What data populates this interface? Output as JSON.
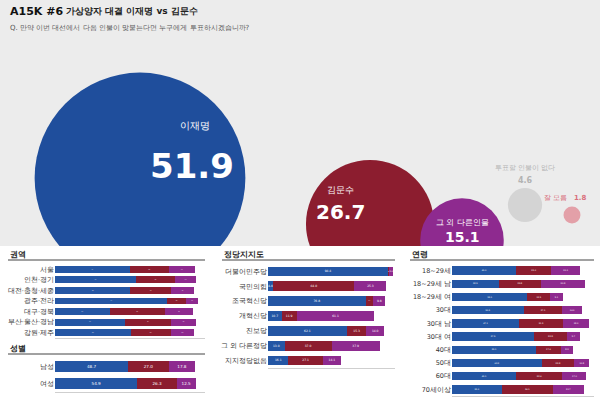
{
  "header": {
    "code": "A15K #6",
    "title": "가상양자 대결 이재명 vs 김문수",
    "question": "Q. 만약 이번 대선에서 다음 인물이 맞붙는다면 누구에게 투표하시겠습니까?"
  },
  "chart_data": [
    {
      "type": "bubble",
      "categories": [
        "이재명",
        "김문수",
        "그 외 다른인물",
        "투표할 인물이 없다",
        "잘 모름"
      ],
      "values": [
        51.9,
        26.7,
        15.1,
        4.6,
        1.8
      ],
      "colors": [
        "#1f4e9c",
        "#8c1d2f",
        "#8e2a8f",
        "#d4d4d4",
        "#e3a0a8"
      ],
      "data_labels": true
    },
    {
      "type": "bar",
      "title": "권역",
      "orientation": "horizontal",
      "stacked": true,
      "data_labels": true,
      "tick_labels": "y",
      "xlim": [
        0,
        100
      ],
      "categories": [
        "서울",
        "인천·경기",
        "대전·충청·세종",
        "광주·전라",
        "대구·경북",
        "부산·울산·경남",
        "강원·제주"
      ],
      "series": [
        {
          "color": "#2456a4",
          "values": [
            49.7,
            54.0,
            50.3,
            74.9,
            36.4,
            46.5,
            50.5
          ],
          "value_labels": [
            "49.7",
            "54.0",
            "50.3",
            "74.9",
            "36.4",
            "46.5",
            "50.5"
          ]
        },
        {
          "color": "#8c1d2f",
          "values": [
            26.3,
            26.0,
            27.1,
            12.2,
            36.9,
            30.9,
            26.5
          ],
          "value_labels": [
            "26.3",
            "26.0",
            "27.1",
            "12.2",
            "36.9",
            "30.9",
            "26.5"
          ]
        },
        {
          "color": "#8e2a8f",
          "values": [
            17.1,
            14.1,
            15.4,
            8.5,
            18.7,
            16.5,
            15.8
          ],
          "value_labels": [
            "17.1",
            "14.1",
            "15.4",
            "8.5",
            "18.7",
            "16.5",
            "15.8"
          ]
        }
      ]
    },
    {
      "type": "bar",
      "title": "성별",
      "orientation": "horizontal",
      "stacked": true,
      "data_labels": true,
      "tick_labels": "y",
      "xlim": [
        0,
        100
      ],
      "categories": [
        "남성",
        "여성"
      ],
      "series": [
        {
          "color": "#2456a4",
          "values": [
            48.7,
            54.9
          ],
          "value_labels": [
            "48.7",
            "54.9"
          ]
        },
        {
          "color": "#8c1d2f",
          "values": [
            27.0,
            26.3
          ],
          "value_labels": [
            "27.0",
            "26.3"
          ]
        },
        {
          "color": "#8e2a8f",
          "values": [
            17.8,
            12.5
          ],
          "value_labels": [
            "17.8",
            "12.5"
          ]
        }
      ]
    },
    {
      "type": "bar",
      "title": "정당지지도",
      "orientation": "horizontal",
      "stacked": true,
      "data_labels": true,
      "tick_labels": "y",
      "xlim": [
        0,
        100
      ],
      "categories": [
        "더불어민주당",
        "국민의힘",
        "조국혁신당",
        "개혁신당",
        "진보당",
        "그 외 다른정당",
        "지지정당없음"
      ],
      "series": [
        {
          "color": "#2456a4",
          "values": [
            94.4,
            4.0,
            76.8,
            10.7,
            62.1,
            13.0,
            16.1
          ],
          "value_labels": [
            "94.4",
            "4.0",
            "76.8",
            "10.7",
            "62.1",
            "13.0",
            "16.1"
          ]
        },
        {
          "color": "#8c1d2f",
          "values": [
            1.2,
            64.0,
            5.9,
            11.9,
            15.3,
            37.0,
            27.1
          ],
          "value_labels": [
            "1.2",
            "64.0",
            "5.9",
            "11.9",
            "15.3",
            "37.0",
            "27.1"
          ]
        },
        {
          "color": "#8e2a8f",
          "values": [
            2.6,
            25.3,
            9.8,
            61.1,
            14.0,
            37.9,
            14.1
          ],
          "value_labels": [
            "2.6",
            "25.3",
            "9.8",
            "61.1",
            "14.0",
            "37.9",
            "14.1"
          ]
        }
      ]
    },
    {
      "type": "bar",
      "title": "연령",
      "orientation": "horizontal",
      "stacked": true,
      "data_labels": true,
      "tick_labels": "y",
      "xlim": [
        0,
        100
      ],
      "categories": [
        "18~29세",
        "18~29세 남",
        "18~29세 여",
        "30대",
        "30대 남",
        "30대 여",
        "40대",
        "50대",
        "60대",
        "70세이상"
      ],
      "series": [
        {
          "color": "#2456a4",
          "values": [
            45.0,
            32.9,
            53.1,
            50.5,
            47.1,
            57.9,
            59.1,
            63.2,
            45.1,
            35.0
          ],
          "value_labels": [
            "45.0",
            "32.9",
            "53.1",
            "50.5",
            "47.1",
            "57.9",
            "59.1",
            "63.2",
            "45.1",
            "35.0"
          ]
        },
        {
          "color": "#8c1d2f",
          "values": [
            25.0,
            29.8,
            15.9,
            27.1,
            31.3,
            22.8,
            17.6,
            22.8,
            32.6,
            36.1
          ],
          "value_labels": [
            "25.0",
            "29.8",
            "15.9",
            "27.1",
            "31.3",
            "22.8",
            "17.6",
            "22.8",
            "32.6",
            "36.1"
          ]
        },
        {
          "color": "#8e2a8f",
          "values": [
            20.1,
            30.8,
            9.1,
            14.0,
            18.0,
            9.7,
            8.3,
            10.8,
            17.0,
            21.7
          ],
          "value_labels": [
            "20.1",
            "30.8",
            "9.1",
            "14.0",
            "18.0",
            "9.7",
            "8.3",
            "10.8",
            "17.0",
            "21.7"
          ]
        }
      ]
    }
  ]
}
